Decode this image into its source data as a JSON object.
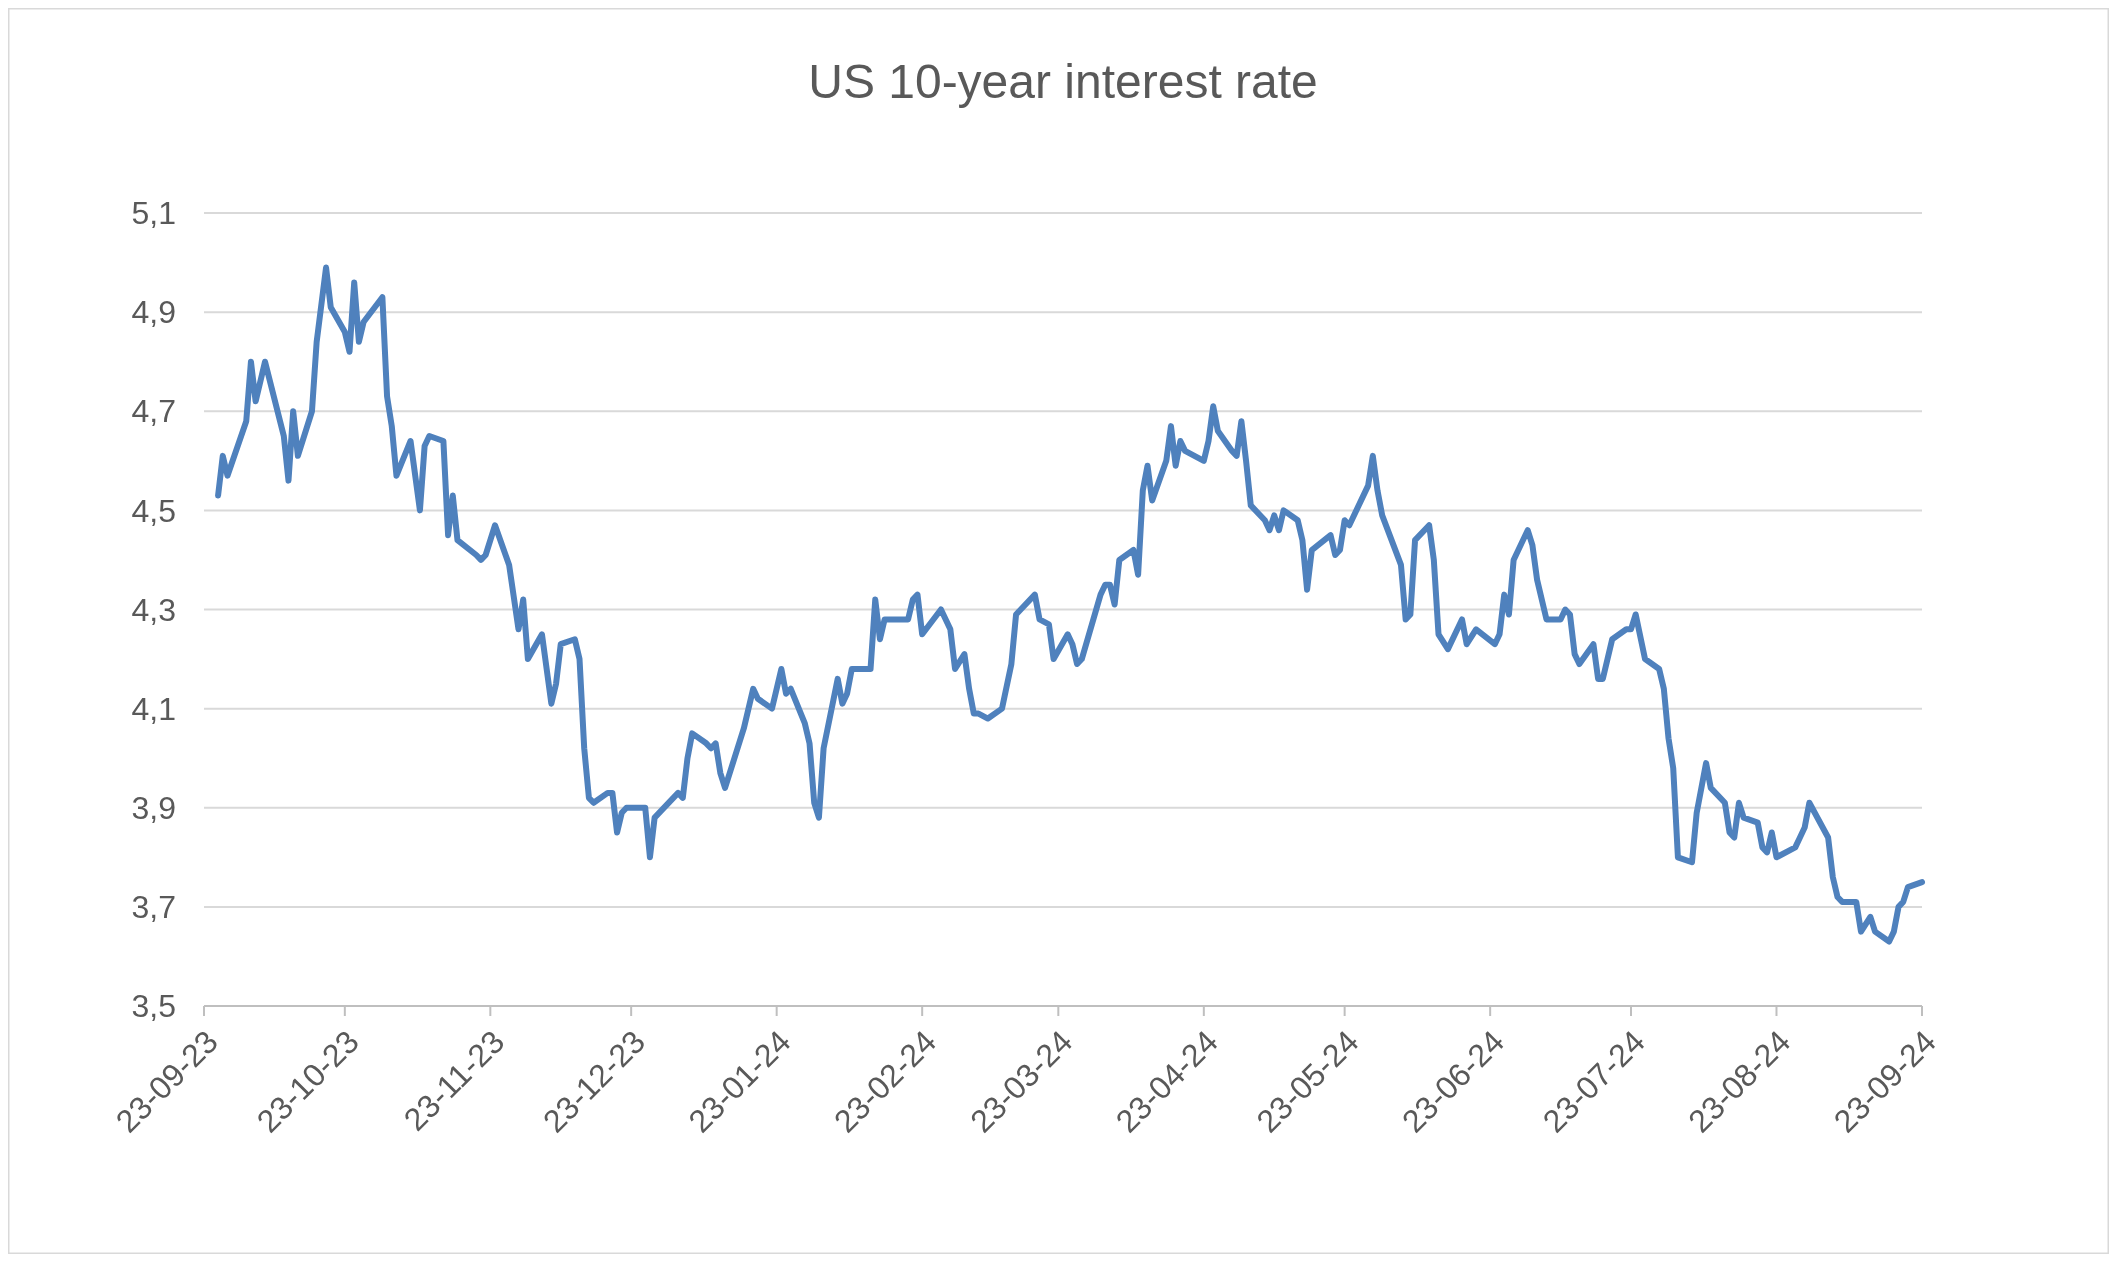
{
  "chart_data": {
    "type": "line",
    "title": "US 10-year interest rate",
    "x": [
      "2023-09-26",
      "2023-09-27",
      "2023-09-28",
      "2023-10-02",
      "2023-10-03",
      "2023-10-04",
      "2023-10-06",
      "2023-10-10",
      "2023-10-11",
      "2023-10-12",
      "2023-10-13",
      "2023-10-16",
      "2023-10-17",
      "2023-10-19",
      "2023-10-20",
      "2023-10-23",
      "2023-10-24",
      "2023-10-25",
      "2023-10-26",
      "2023-10-27",
      "2023-10-31",
      "2023-11-01",
      "2023-11-02",
      "2023-11-03",
      "2023-11-06",
      "2023-11-08",
      "2023-11-09",
      "2023-11-10",
      "2023-11-13",
      "2023-11-14",
      "2023-11-15",
      "2023-11-16",
      "2023-11-20",
      "2023-11-21",
      "2023-11-22",
      "2023-11-24",
      "2023-11-27",
      "2023-11-29",
      "2023-11-30",
      "2023-12-01",
      "2023-12-04",
      "2023-12-06",
      "2023-12-07",
      "2023-12-08",
      "2023-12-11",
      "2023-12-12",
      "2023-12-13",
      "2023-12-14",
      "2023-12-15",
      "2023-12-18",
      "2023-12-19",
      "2023-12-20",
      "2023-12-21",
      "2023-12-22",
      "2023-12-26",
      "2023-12-27",
      "2023-12-28",
      "2024-01-02",
      "2024-01-03",
      "2024-01-04",
      "2024-01-05",
      "2024-01-08",
      "2024-01-09",
      "2024-01-10",
      "2024-01-11",
      "2024-01-12",
      "2024-01-16",
      "2024-01-18",
      "2024-01-19",
      "2024-01-22",
      "2024-01-24",
      "2024-01-25",
      "2024-01-26",
      "2024-01-29",
      "2024-01-30",
      "2024-01-31",
      "2024-02-01",
      "2024-02-02",
      "2024-02-05",
      "2024-02-06",
      "2024-02-07",
      "2024-02-08",
      "2024-02-12",
      "2024-02-13",
      "2024-02-14",
      "2024-02-15",
      "2024-02-20",
      "2024-02-21",
      "2024-02-22",
      "2024-02-23",
      "2024-02-27",
      "2024-02-29",
      "2024-03-01",
      "2024-03-03",
      "2024-03-04",
      "2024-03-05",
      "2024-03-06",
      "2024-03-08",
      "2024-03-11",
      "2024-03-13",
      "2024-03-14",
      "2024-03-15",
      "2024-03-18",
      "2024-03-19",
      "2024-03-21",
      "2024-03-22",
      "2024-03-25",
      "2024-03-26",
      "2024-03-27",
      "2024-03-28",
      "2024-04-01",
      "2024-04-02",
      "2024-04-03",
      "2024-04-04",
      "2024-04-05",
      "2024-04-08",
      "2024-04-09",
      "2024-04-10",
      "2024-04-11",
      "2024-04-12",
      "2024-04-15",
      "2024-04-16",
      "2024-04-17",
      "2024-04-18",
      "2024-04-19",
      "2024-04-23",
      "2024-04-24",
      "2024-04-25",
      "2024-04-26",
      "2024-04-29",
      "2024-04-30",
      "2024-05-01",
      "2024-05-02",
      "2024-05-03",
      "2024-05-06",
      "2024-05-07",
      "2024-05-08",
      "2024-05-09",
      "2024-05-10",
      "2024-05-13",
      "2024-05-14",
      "2024-05-15",
      "2024-05-16",
      "2024-05-20",
      "2024-05-21",
      "2024-05-22",
      "2024-05-23",
      "2024-05-24",
      "2024-05-28",
      "2024-05-29",
      "2024-05-30",
      "2024-05-31",
      "2024-06-04",
      "2024-06-05",
      "2024-06-06",
      "2024-06-07",
      "2024-06-10",
      "2024-06-11",
      "2024-06-12",
      "2024-06-14",
      "2024-06-17",
      "2024-06-18",
      "2024-06-20",
      "2024-06-24",
      "2024-06-25",
      "2024-06-26",
      "2024-06-27",
      "2024-06-28",
      "2024-07-01",
      "2024-07-02",
      "2024-07-03",
      "2024-07-05",
      "2024-07-08",
      "2024-07-09",
      "2024-07-10",
      "2024-07-11",
      "2024-07-12",
      "2024-07-15",
      "2024-07-16",
      "2024-07-17",
      "2024-07-19",
      "2024-07-22",
      "2024-07-23",
      "2024-07-24",
      "2024-07-26",
      "2024-07-29",
      "2024-07-30",
      "2024-07-31",
      "2024-08-01",
      "2024-08-02",
      "2024-08-05",
      "2024-08-06",
      "2024-08-08",
      "2024-08-09",
      "2024-08-12",
      "2024-08-13",
      "2024-08-14",
      "2024-08-15",
      "2024-08-16",
      "2024-08-19",
      "2024-08-20",
      "2024-08-21",
      "2024-08-22",
      "2024-08-23",
      "2024-08-27",
      "2024-08-28",
      "2024-08-29",
      "2024-08-30",
      "2024-09-03",
      "2024-09-04",
      "2024-09-05",
      "2024-09-06",
      "2024-09-09",
      "2024-09-10",
      "2024-09-12",
      "2024-09-13",
      "2024-09-16",
      "2024-09-17",
      "2024-09-18",
      "2024-09-19",
      "2024-09-20",
      "2024-09-23"
    ],
    "series": [
      {
        "color": "#4f81bd",
        "values": [
          4.53,
          4.61,
          4.57,
          4.68,
          4.8,
          4.72,
          4.8,
          4.65,
          4.56,
          4.7,
          4.61,
          4.7,
          4.84,
          4.99,
          4.91,
          4.86,
          4.82,
          4.96,
          4.84,
          4.88,
          4.93,
          4.73,
          4.67,
          4.57,
          4.64,
          4.5,
          4.63,
          4.65,
          4.64,
          4.45,
          4.53,
          4.44,
          4.41,
          4.4,
          4.41,
          4.47,
          4.39,
          4.26,
          4.32,
          4.2,
          4.25,
          4.11,
          4.15,
          4.23,
          4.24,
          4.2,
          4.02,
          3.92,
          3.91,
          3.93,
          3.93,
          3.85,
          3.89,
          3.9,
          3.9,
          3.8,
          3.88,
          3.93,
          3.92,
          4.0,
          4.05,
          4.03,
          4.02,
          4.03,
          3.97,
          3.94,
          4.06,
          4.14,
          4.12,
          4.1,
          4.18,
          4.13,
          4.14,
          4.07,
          4.03,
          3.91,
          3.88,
          4.02,
          4.16,
          4.11,
          4.13,
          4.18,
          4.18,
          4.32,
          4.24,
          4.28,
          4.28,
          4.32,
          4.33,
          4.25,
          4.3,
          4.26,
          4.18,
          4.21,
          4.14,
          4.09,
          4.09,
          4.08,
          4.1,
          4.19,
          4.29,
          4.3,
          4.33,
          4.28,
          4.27,
          4.2,
          4.25,
          4.23,
          4.19,
          4.2,
          4.33,
          4.35,
          4.35,
          4.31,
          4.4,
          4.42,
          4.37,
          4.54,
          4.59,
          4.52,
          4.6,
          4.67,
          4.59,
          4.64,
          4.62,
          4.6,
          4.64,
          4.71,
          4.66,
          4.62,
          4.61,
          4.68,
          4.6,
          4.51,
          4.48,
          4.46,
          4.49,
          4.46,
          4.5,
          4.48,
          4.44,
          4.34,
          4.42,
          4.45,
          4.41,
          4.42,
          4.48,
          4.47,
          4.55,
          4.61,
          4.54,
          4.49,
          4.39,
          4.28,
          4.29,
          4.44,
          4.47,
          4.4,
          4.25,
          4.22,
          4.28,
          4.23,
          4.26,
          4.23,
          4.25,
          4.33,
          4.29,
          4.4,
          4.46,
          4.43,
          4.36,
          4.28,
          4.28,
          4.3,
          4.29,
          4.21,
          4.19,
          4.23,
          4.16,
          4.16,
          4.24,
          4.26,
          4.26,
          4.29,
          4.2,
          4.18,
          4.14,
          4.04,
          3.98,
          3.8,
          3.79,
          3.89,
          3.99,
          3.94,
          3.91,
          3.85,
          3.84,
          3.91,
          3.88,
          3.87,
          3.82,
          3.81,
          3.85,
          3.8,
          3.82,
          3.84,
          3.86,
          3.91,
          3.84,
          3.76,
          3.72,
          3.71,
          3.71,
          3.65,
          3.68,
          3.65,
          3.63,
          3.65,
          3.7,
          3.71,
          3.74,
          3.75
        ]
      }
    ],
    "xlim": [
      "2023-09-23",
      "2024-09-23"
    ],
    "xticks": [
      {
        "value": "2023-09-23",
        "label": "23-09-23"
      },
      {
        "value": "2023-10-23",
        "label": "23-10-23"
      },
      {
        "value": "2023-11-23",
        "label": "23-11-23"
      },
      {
        "value": "2023-12-23",
        "label": "23-12-23"
      },
      {
        "value": "2024-01-23",
        "label": "23-01-24"
      },
      {
        "value": "2024-02-23",
        "label": "23-02-24"
      },
      {
        "value": "2024-03-23",
        "label": "23-03-24"
      },
      {
        "value": "2024-04-23",
        "label": "23-04-24"
      },
      {
        "value": "2024-05-23",
        "label": "23-05-24"
      },
      {
        "value": "2024-06-23",
        "label": "23-06-24"
      },
      {
        "value": "2024-07-23",
        "label": "23-07-24"
      },
      {
        "value": "2024-08-23",
        "label": "23-08-24"
      },
      {
        "value": "2024-09-23",
        "label": "23-09-24"
      }
    ],
    "ylim": [
      3.5,
      5.1
    ],
    "yticks": [
      {
        "value": 3.5,
        "label": "3,5"
      },
      {
        "value": 3.7,
        "label": "3,7"
      },
      {
        "value": 3.9,
        "label": "3,9"
      },
      {
        "value": 4.1,
        "label": "4,1"
      },
      {
        "value": 4.3,
        "label": "4,3"
      },
      {
        "value": 4.5,
        "label": "4,5"
      },
      {
        "value": 4.7,
        "label": "4,7"
      },
      {
        "value": 4.9,
        "label": "4,9"
      },
      {
        "value": 5.1,
        "label": "5,1"
      }
    ],
    "grid": "y",
    "line_style": "solid",
    "marker": "none"
  }
}
